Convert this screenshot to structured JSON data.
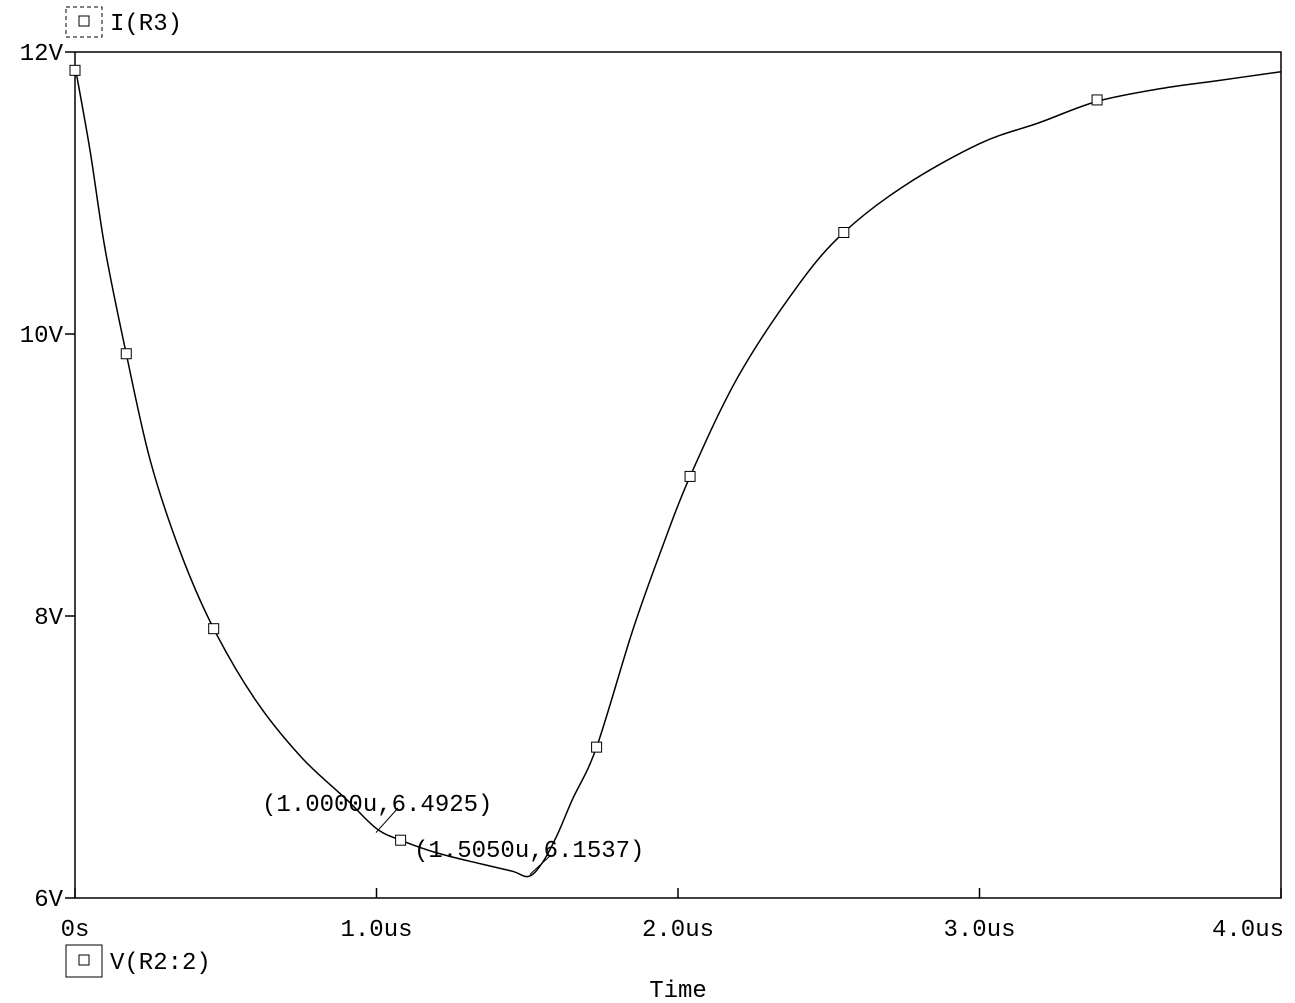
{
  "chart_data": {
    "type": "line",
    "xlabel": "Time",
    "x_ticks": [
      {
        "value": 0,
        "label": "0s"
      },
      {
        "value": 1.0,
        "label": "1.0us"
      },
      {
        "value": 2.0,
        "label": "2.0us"
      },
      {
        "value": 3.0,
        "label": "3.0us"
      },
      {
        "value": 4.0,
        "label": "4.0us"
      }
    ],
    "y_ticks": [
      {
        "value": 6,
        "label": "6V"
      },
      {
        "value": 8,
        "label": "8V"
      },
      {
        "value": 10,
        "label": "10V"
      },
      {
        "value": 12,
        "label": "12V"
      }
    ],
    "xlim": [
      0,
      4.0
    ],
    "ylim": [
      6,
      12
    ],
    "grid": false,
    "traces_top": [
      {
        "label": "I(R3)"
      }
    ],
    "traces_bottom": [
      {
        "label": "V(R2:2)"
      }
    ],
    "series": [
      {
        "x": [
          0,
          0.05,
          0.1,
          0.17,
          0.25,
          0.35,
          0.46,
          0.6,
          0.75,
          0.9,
          1.0,
          1.08,
          1.2,
          1.35,
          1.45,
          1.505,
          1.55,
          1.6,
          1.65,
          1.73,
          1.85,
          1.95,
          2.04,
          2.2,
          2.4,
          2.55,
          2.75,
          3.0,
          3.2,
          3.39,
          3.6,
          3.8,
          4.0
        ],
        "y": [
          11.9,
          11.3,
          10.6,
          9.86,
          9.1,
          8.45,
          7.91,
          7.4,
          7.0,
          6.7,
          6.4925,
          6.41,
          6.32,
          6.24,
          6.19,
          6.1537,
          6.25,
          6.45,
          6.7,
          7.07,
          7.9,
          8.5,
          8.99,
          9.7,
          10.35,
          10.72,
          11.05,
          11.35,
          11.5,
          11.65,
          11.74,
          11.8,
          11.86
        ]
      }
    ],
    "marker_points": [
      {
        "x": 0.0,
        "y": 11.87
      },
      {
        "x": 0.17,
        "y": 9.86
      },
      {
        "x": 0.46,
        "y": 7.91
      },
      {
        "x": 1.08,
        "y": 6.41
      },
      {
        "x": 1.73,
        "y": 7.07
      },
      {
        "x": 2.04,
        "y": 8.99
      },
      {
        "x": 2.55,
        "y": 10.72
      },
      {
        "x": 3.39,
        "y": 11.66
      }
    ],
    "annotations": [
      {
        "text": "(1.0000u,6.4925)",
        "x": 1.0,
        "y": 6.4925
      },
      {
        "text": "(1.5050u,6.1537)",
        "x": 1.505,
        "y": 6.1537
      }
    ]
  }
}
